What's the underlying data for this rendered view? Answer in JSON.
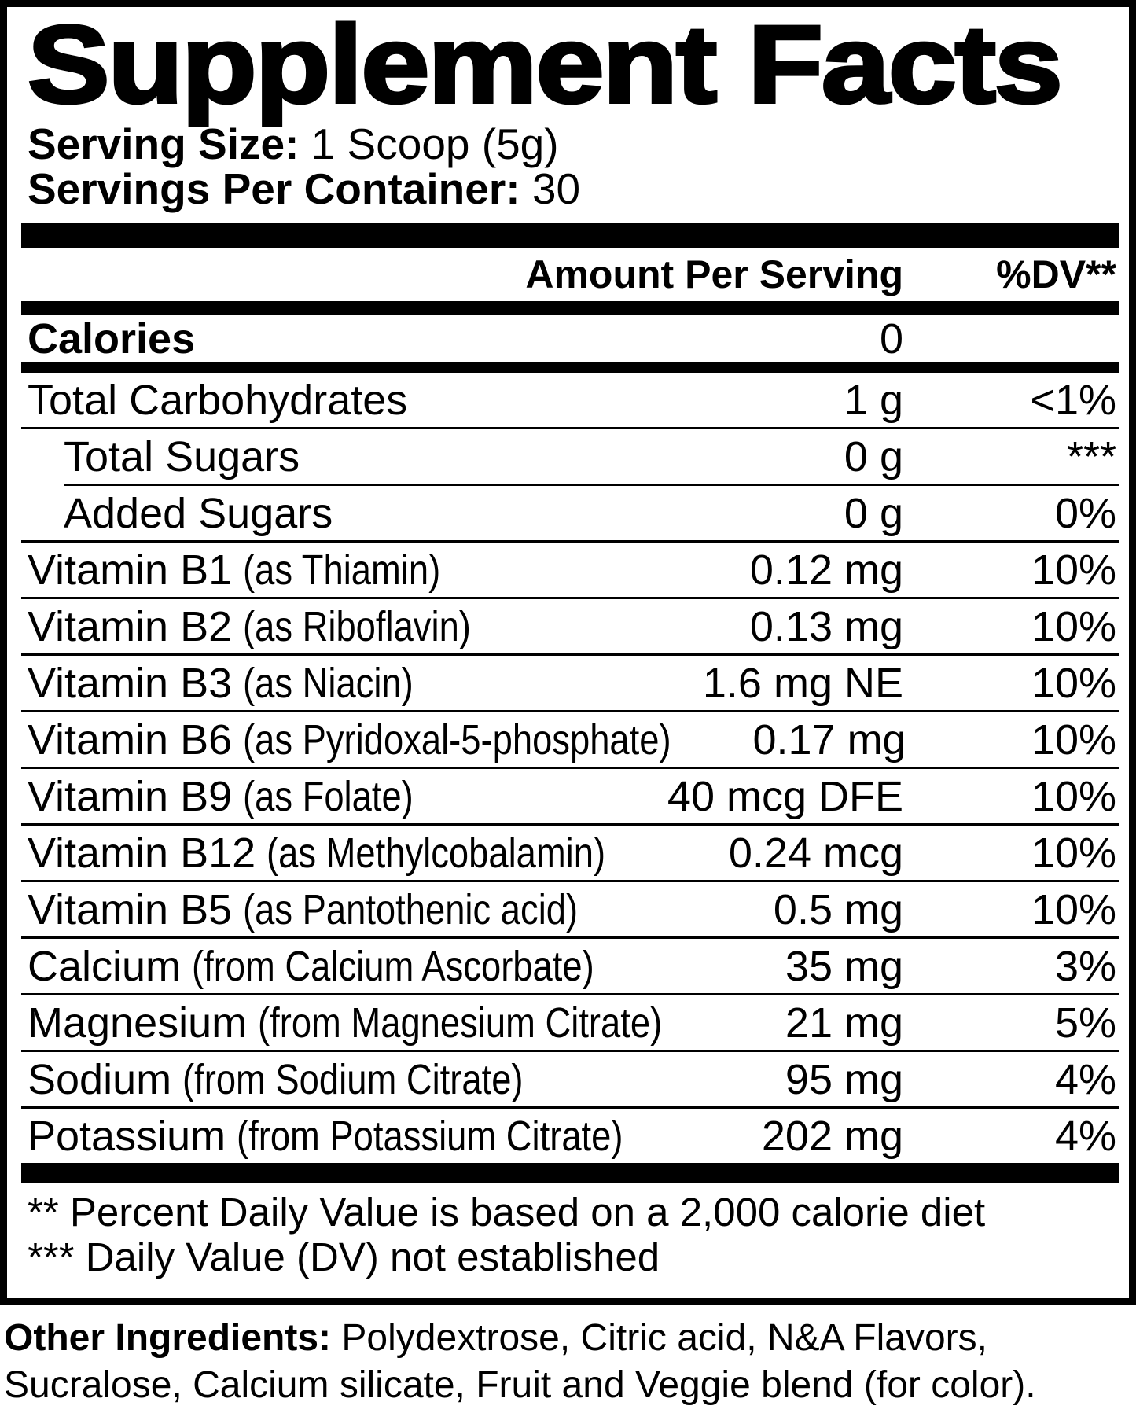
{
  "panel": {
    "title": "Supplement Facts",
    "serving_size_label": "Serving Size:",
    "serving_size_value": "1 Scoop (5g)",
    "servings_label": "Servings Per Container:",
    "servings_value": "30",
    "colors": {
      "ink": "#000000",
      "paper": "#ffffff"
    }
  },
  "table": {
    "amount_header": "Amount Per Serving",
    "dv_header": "%DV**",
    "rows": [
      {
        "name": "Calories",
        "detail": "",
        "amount": "0",
        "dv": "",
        "bold": true,
        "indent": false,
        "rule_after": "bar-md"
      },
      {
        "name": "Total Carbohydrates",
        "detail": "",
        "amount": "1 g",
        "dv": "<1%",
        "bold": false,
        "indent": false,
        "rule_after": "hair"
      },
      {
        "name": "Total Sugars",
        "detail": "",
        "amount": "0 g",
        "dv": "***",
        "bold": false,
        "indent": true,
        "rule_after": "hair-indent"
      },
      {
        "name": "Added Sugars",
        "detail": "",
        "amount": "0 g",
        "dv": "0%",
        "bold": false,
        "indent": true,
        "rule_after": "hair"
      },
      {
        "name": "Vitamin B1",
        "detail": "(as Thiamin)",
        "amount": "0.12 mg",
        "dv": "10%",
        "bold": false,
        "indent": false,
        "rule_after": "hair"
      },
      {
        "name": "Vitamin B2",
        "detail": "(as Riboflavin)",
        "amount": "0.13 mg",
        "dv": "10%",
        "bold": false,
        "indent": false,
        "rule_after": "hair"
      },
      {
        "name": "Vitamin B3",
        "detail": "(as Niacin)",
        "amount": "1.6 mg NE",
        "dv": "10%",
        "bold": false,
        "indent": false,
        "rule_after": "hair"
      },
      {
        "name": "Vitamin B6",
        "detail": "(as Pyridoxal-5-phosphate)",
        "amount": "0.17 mg",
        "dv": "10%",
        "bold": false,
        "indent": false,
        "rule_after": "hair"
      },
      {
        "name": "Vitamin B9",
        "detail": "(as Folate)",
        "amount": "40 mcg DFE",
        "dv": "10%",
        "bold": false,
        "indent": false,
        "rule_after": "hair"
      },
      {
        "name": "Vitamin B12",
        "detail": "(as Methylcobalamin)",
        "amount": "0.24 mcg",
        "dv": "10%",
        "bold": false,
        "indent": false,
        "rule_after": "hair"
      },
      {
        "name": "Vitamin B5",
        "detail": "(as Pantothenic acid)",
        "amount": "0.5 mg",
        "dv": "10%",
        "bold": false,
        "indent": false,
        "rule_after": "hair"
      },
      {
        "name": "Calcium",
        "detail": "(from Calcium Ascorbate)",
        "amount": "35 mg",
        "dv": "3%",
        "bold": false,
        "indent": false,
        "rule_after": "hair"
      },
      {
        "name": "Magnesium",
        "detail": "(from Magnesium Citrate)",
        "amount": "21 mg",
        "dv": "5%",
        "bold": false,
        "indent": false,
        "rule_after": "hair"
      },
      {
        "name": "Sodium",
        "detail": "(from Sodium Citrate)",
        "amount": "95 mg",
        "dv": "4%",
        "bold": false,
        "indent": false,
        "rule_after": "hair"
      },
      {
        "name": "Potassium",
        "detail": "(from Potassium Citrate)",
        "amount": "202 mg",
        "dv": "4%",
        "bold": false,
        "indent": false,
        "rule_after": "none"
      }
    ]
  },
  "footnotes": [
    "** Percent Daily Value is based on a 2,000 calorie diet",
    "*** Daily Value (DV) not established"
  ],
  "other_ingredients": {
    "label": "Other Ingredients:",
    "lines": [
      "Polydextrose, Citric acid, N&A Flavors,",
      "Sucralose, Calcium silicate, Fruit and Veggie blend (for color)."
    ]
  }
}
